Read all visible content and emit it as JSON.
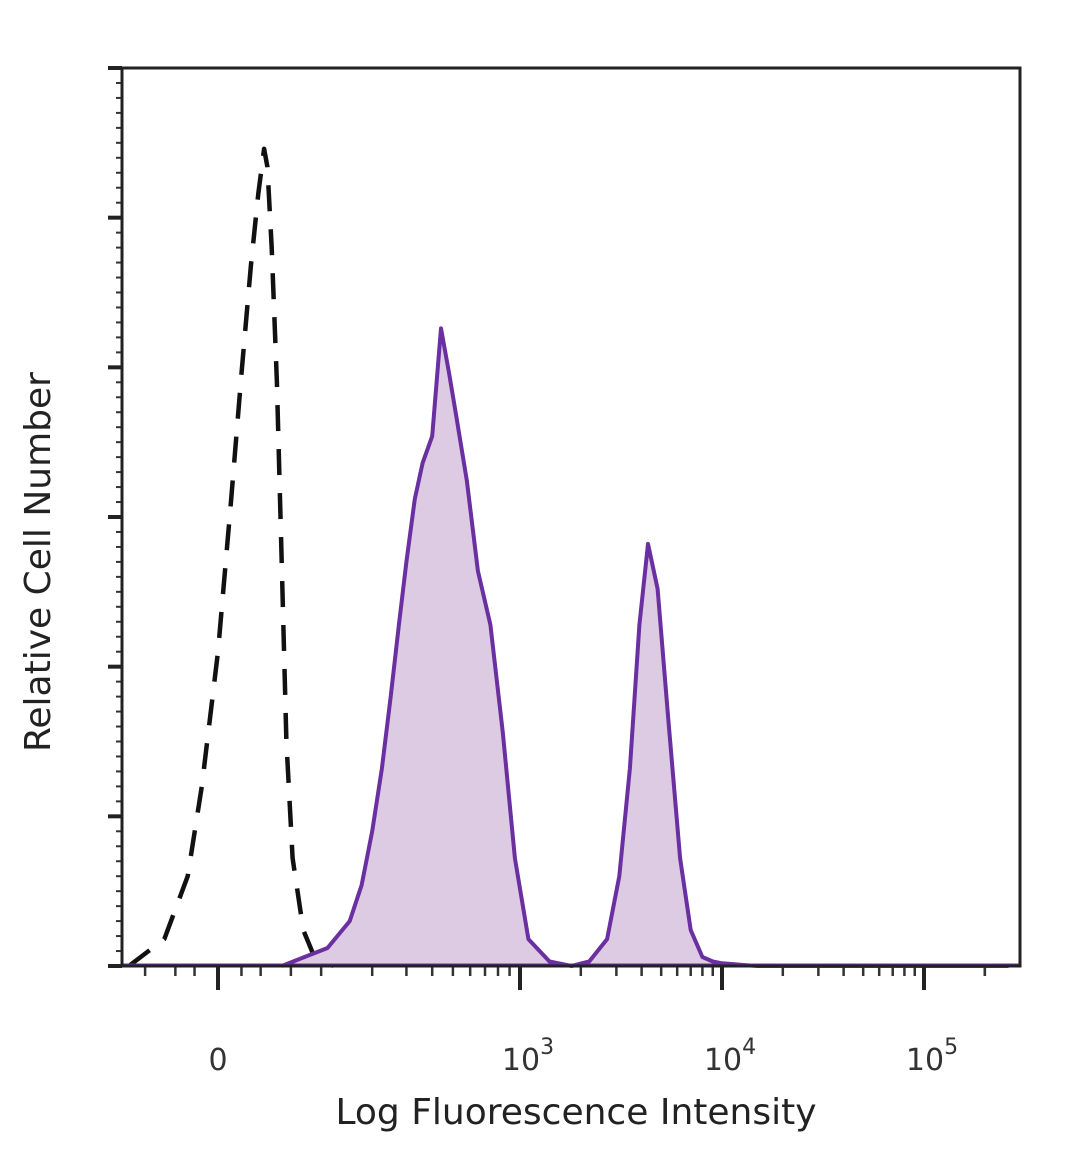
{
  "chart_data": {
    "type": "area",
    "title": "",
    "xlabel": "Log Fluorescence Intensity",
    "ylabel": "Relative Cell Number",
    "x_scale": "biexponential (log above 10^3)",
    "x_ticks": [
      {
        "value": 0,
        "base": "0",
        "exp": ""
      },
      {
        "value": 1000,
        "base": "10",
        "exp": "3"
      },
      {
        "value": 10000,
        "base": "10",
        "exp": "4"
      },
      {
        "value": 100000,
        "base": "10",
        "exp": "5"
      }
    ],
    "xlim": [
      -150,
      262144
    ],
    "ylim": [
      0,
      100
    ],
    "grid": false,
    "legend": "none",
    "colors": {
      "stained": "#6a2fa0",
      "stained_fill": "#dccbe3",
      "control": "#111111",
      "frame": "#222222"
    },
    "series": [
      {
        "style": "dashed-unfilled",
        "color": "#111111",
        "x": [
          -80,
          -40,
          -20,
          -10,
          0,
          8,
          15,
          22,
          28,
          33,
          36,
          40,
          45,
          50,
          55,
          62,
          75,
          90,
          120
        ],
        "y": [
          0,
          3,
          10,
          20,
          35,
          52,
          66,
          78,
          86,
          91,
          89,
          80,
          65,
          45,
          25,
          12,
          4,
          1,
          0
        ]
      },
      {
        "style": "solid-filled",
        "color": "#6a2fa0",
        "fill": "#dccbe3",
        "x": [
          50,
          110,
          150,
          175,
          200,
          225,
          250,
          275,
          300,
          330,
          360,
          400,
          440,
          480,
          520,
          580,
          650,
          740,
          840,
          950,
          1100,
          1400,
          1800,
          2200,
          2700,
          3100,
          3500,
          3900,
          4300,
          4800,
          5400,
          6200,
          7000,
          8000,
          9000,
          10000,
          11500,
          13000,
          15000,
          20000,
          50000,
          262144
        ],
        "y": [
          0,
          2,
          5,
          9,
          15,
          22,
          30,
          38,
          45,
          52,
          56,
          59,
          71,
          66,
          61,
          54,
          44,
          38,
          26,
          12,
          3,
          0.5,
          0,
          0.5,
          3,
          10,
          22,
          38,
          47,
          42,
          28,
          12,
          4,
          1,
          0.5,
          0.3,
          0.2,
          0.1,
          0,
          0,
          0,
          0
        ]
      }
    ]
  }
}
